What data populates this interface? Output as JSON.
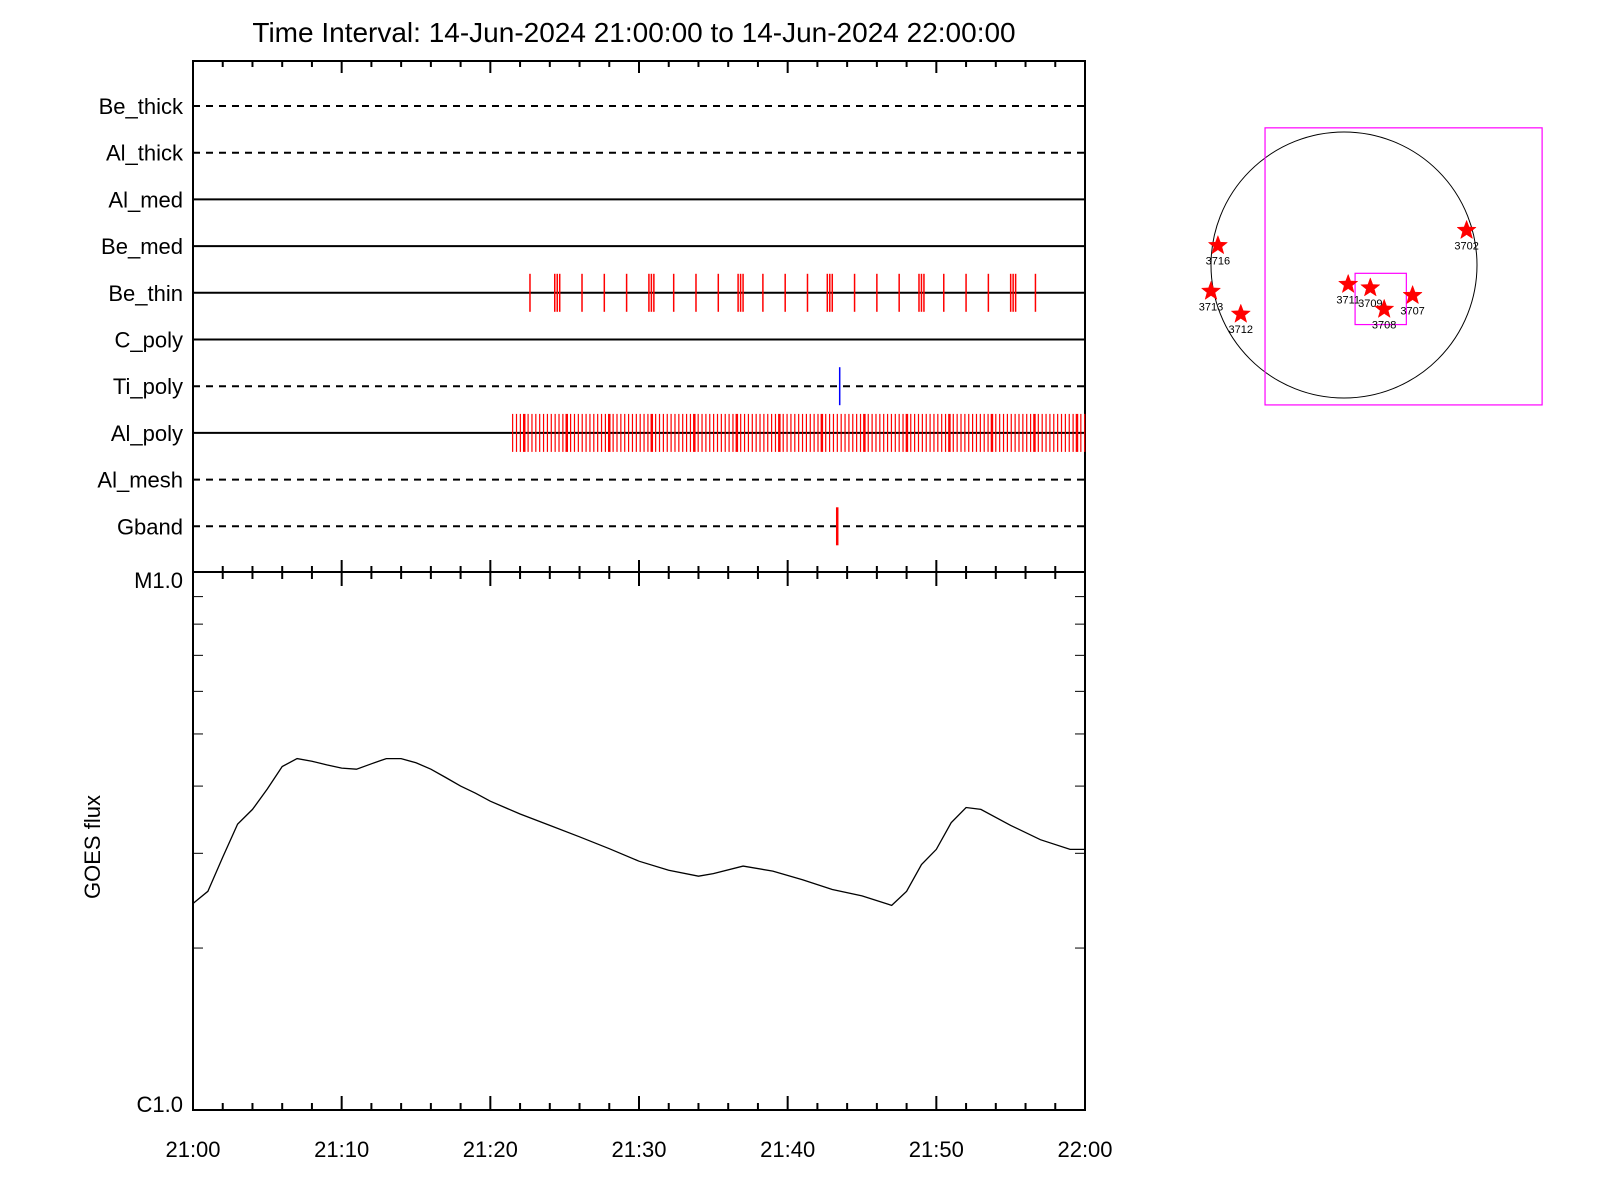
{
  "chart_data": [
    {
      "type": "event-timeline",
      "title": "Time Interval: 14-Jun-2024 21:00:00 to 14-Jun-2024 22:00:00",
      "x_tick_labels": [
        "21:00",
        "21:10",
        "21:20",
        "21:30",
        "21:40",
        "21:50",
        "22:00"
      ],
      "xlim": [
        "21:00",
        "22:00"
      ],
      "colors": {
        "events": "#ff0000",
        "ti_event": "#0000ff",
        "axis": "#000000"
      },
      "rows": [
        {
          "name": "Be_thick",
          "style": "dashed",
          "events": [],
          "color": "#ff0000"
        },
        {
          "name": "Al_thick",
          "style": "dashed",
          "events": [],
          "color": "#ff0000"
        },
        {
          "name": "Al_med",
          "style": "solid",
          "events": [],
          "color": "#ff0000"
        },
        {
          "name": "Be_med",
          "style": "solid",
          "events": [],
          "color": "#ff0000"
        },
        {
          "name": "Be_thin",
          "style": "solid",
          "color": "#ff0000",
          "events": [
            "21:22:40",
            "21:24:20",
            "21:24:30",
            "21:24:40",
            "21:26:10",
            "21:27:40",
            "21:29:10",
            "21:30:40",
            "21:30:50",
            "21:31:00",
            "21:32:20",
            "21:33:50",
            "21:35:20",
            "21:36:40",
            "21:36:50",
            "21:37:00",
            "21:38:20",
            "21:39:50",
            "21:41:20",
            "21:42:40",
            "21:42:50",
            "21:43:00",
            "21:44:30",
            "21:46:00",
            "21:47:30",
            "21:48:50",
            "21:49:00",
            "21:49:10",
            "21:50:30",
            "21:52:00",
            "21:53:30",
            "21:55:00",
            "21:55:10",
            "21:55:20",
            "21:56:40"
          ]
        },
        {
          "name": "C_poly",
          "style": "solid",
          "events": [],
          "color": "#ff0000"
        },
        {
          "name": "Ti_poly",
          "style": "dashed",
          "color": "#0000ff",
          "events": [
            "21:43:30"
          ]
        },
        {
          "name": "Al_poly",
          "style": "solid",
          "color": "#ff0000",
          "dense_span": [
            "21:21:30",
            "22:00:00"
          ]
        },
        {
          "name": "Al_mesh",
          "style": "dashed",
          "events": [],
          "color": "#ff0000"
        },
        {
          "name": "Gband",
          "style": "dashed",
          "color": "#ff0000",
          "events": [
            "21:43:20"
          ]
        }
      ]
    },
    {
      "type": "line",
      "ylabel": "GOES flux",
      "yscale": "log",
      "y_tick_labels": [
        "M1.0",
        "C1.0"
      ],
      "ylim": [
        1e-06,
        1e-05
      ],
      "xlim": [
        "21:00",
        "22:00"
      ],
      "x": [
        "21:00",
        "21:01",
        "21:02",
        "21:03",
        "21:04",
        "21:05",
        "21:06",
        "21:07",
        "21:08",
        "21:09",
        "21:10",
        "21:11",
        "21:12",
        "21:13",
        "21:14",
        "21:15",
        "21:16",
        "21:17",
        "21:18",
        "21:19",
        "21:20",
        "21:22",
        "21:24",
        "21:26",
        "21:28",
        "21:30",
        "21:32",
        "21:34",
        "21:35",
        "21:37",
        "21:39",
        "21:41",
        "21:43",
        "21:45",
        "21:47",
        "21:48",
        "21:49",
        "21:50",
        "21:51",
        "21:52",
        "21:53",
        "21:55",
        "21:57",
        "21:59",
        "22:00"
      ],
      "values": [
        2.42e-06,
        2.55e-06,
        2.95e-06,
        3.4e-06,
        3.62e-06,
        3.95e-06,
        4.35e-06,
        4.5e-06,
        4.45e-06,
        4.38e-06,
        4.32e-06,
        4.3e-06,
        4.4e-06,
        4.5e-06,
        4.5e-06,
        4.42e-06,
        4.3e-06,
        4.15e-06,
        4e-06,
        3.88e-06,
        3.75e-06,
        3.55e-06,
        3.38e-06,
        3.22e-06,
        3.06e-06,
        2.9e-06,
        2.79e-06,
        2.72e-06,
        2.75e-06,
        2.84e-06,
        2.78e-06,
        2.68e-06,
        2.57e-06,
        2.5e-06,
        2.4e-06,
        2.55e-06,
        2.86e-06,
        3.05e-06,
        3.42e-06,
        3.65e-06,
        3.62e-06,
        3.38e-06,
        3.18e-06,
        3.05e-06,
        3.05e-06
      ]
    },
    {
      "type": "scatter",
      "description_free": true,
      "disk": {
        "center": [
          0,
          0
        ],
        "radius": 960
      },
      "fov_boxes": [
        {
          "center": [
            430,
            -10
          ],
          "size": [
            2000,
            2000
          ]
        },
        {
          "center": [
            265,
            -245
          ],
          "size": [
            370,
            370
          ]
        }
      ],
      "points": [
        {
          "label": "3716",
          "x": -910,
          "y": 140
        },
        {
          "label": "3713",
          "x": -960,
          "y": -190
        },
        {
          "label": "3712",
          "x": -745,
          "y": -355
        },
        {
          "label": "3711",
          "x": 30,
          "y": -140
        },
        {
          "label": "3709",
          "x": 190,
          "y": -165
        },
        {
          "label": "3708",
          "x": 290,
          "y": -320
        },
        {
          "label": "3707",
          "x": 495,
          "y": -220
        },
        {
          "label": "3702",
          "x": 885,
          "y": 250
        }
      ],
      "point_color": "#ff0000",
      "box_color": "#ff00ff"
    }
  ]
}
